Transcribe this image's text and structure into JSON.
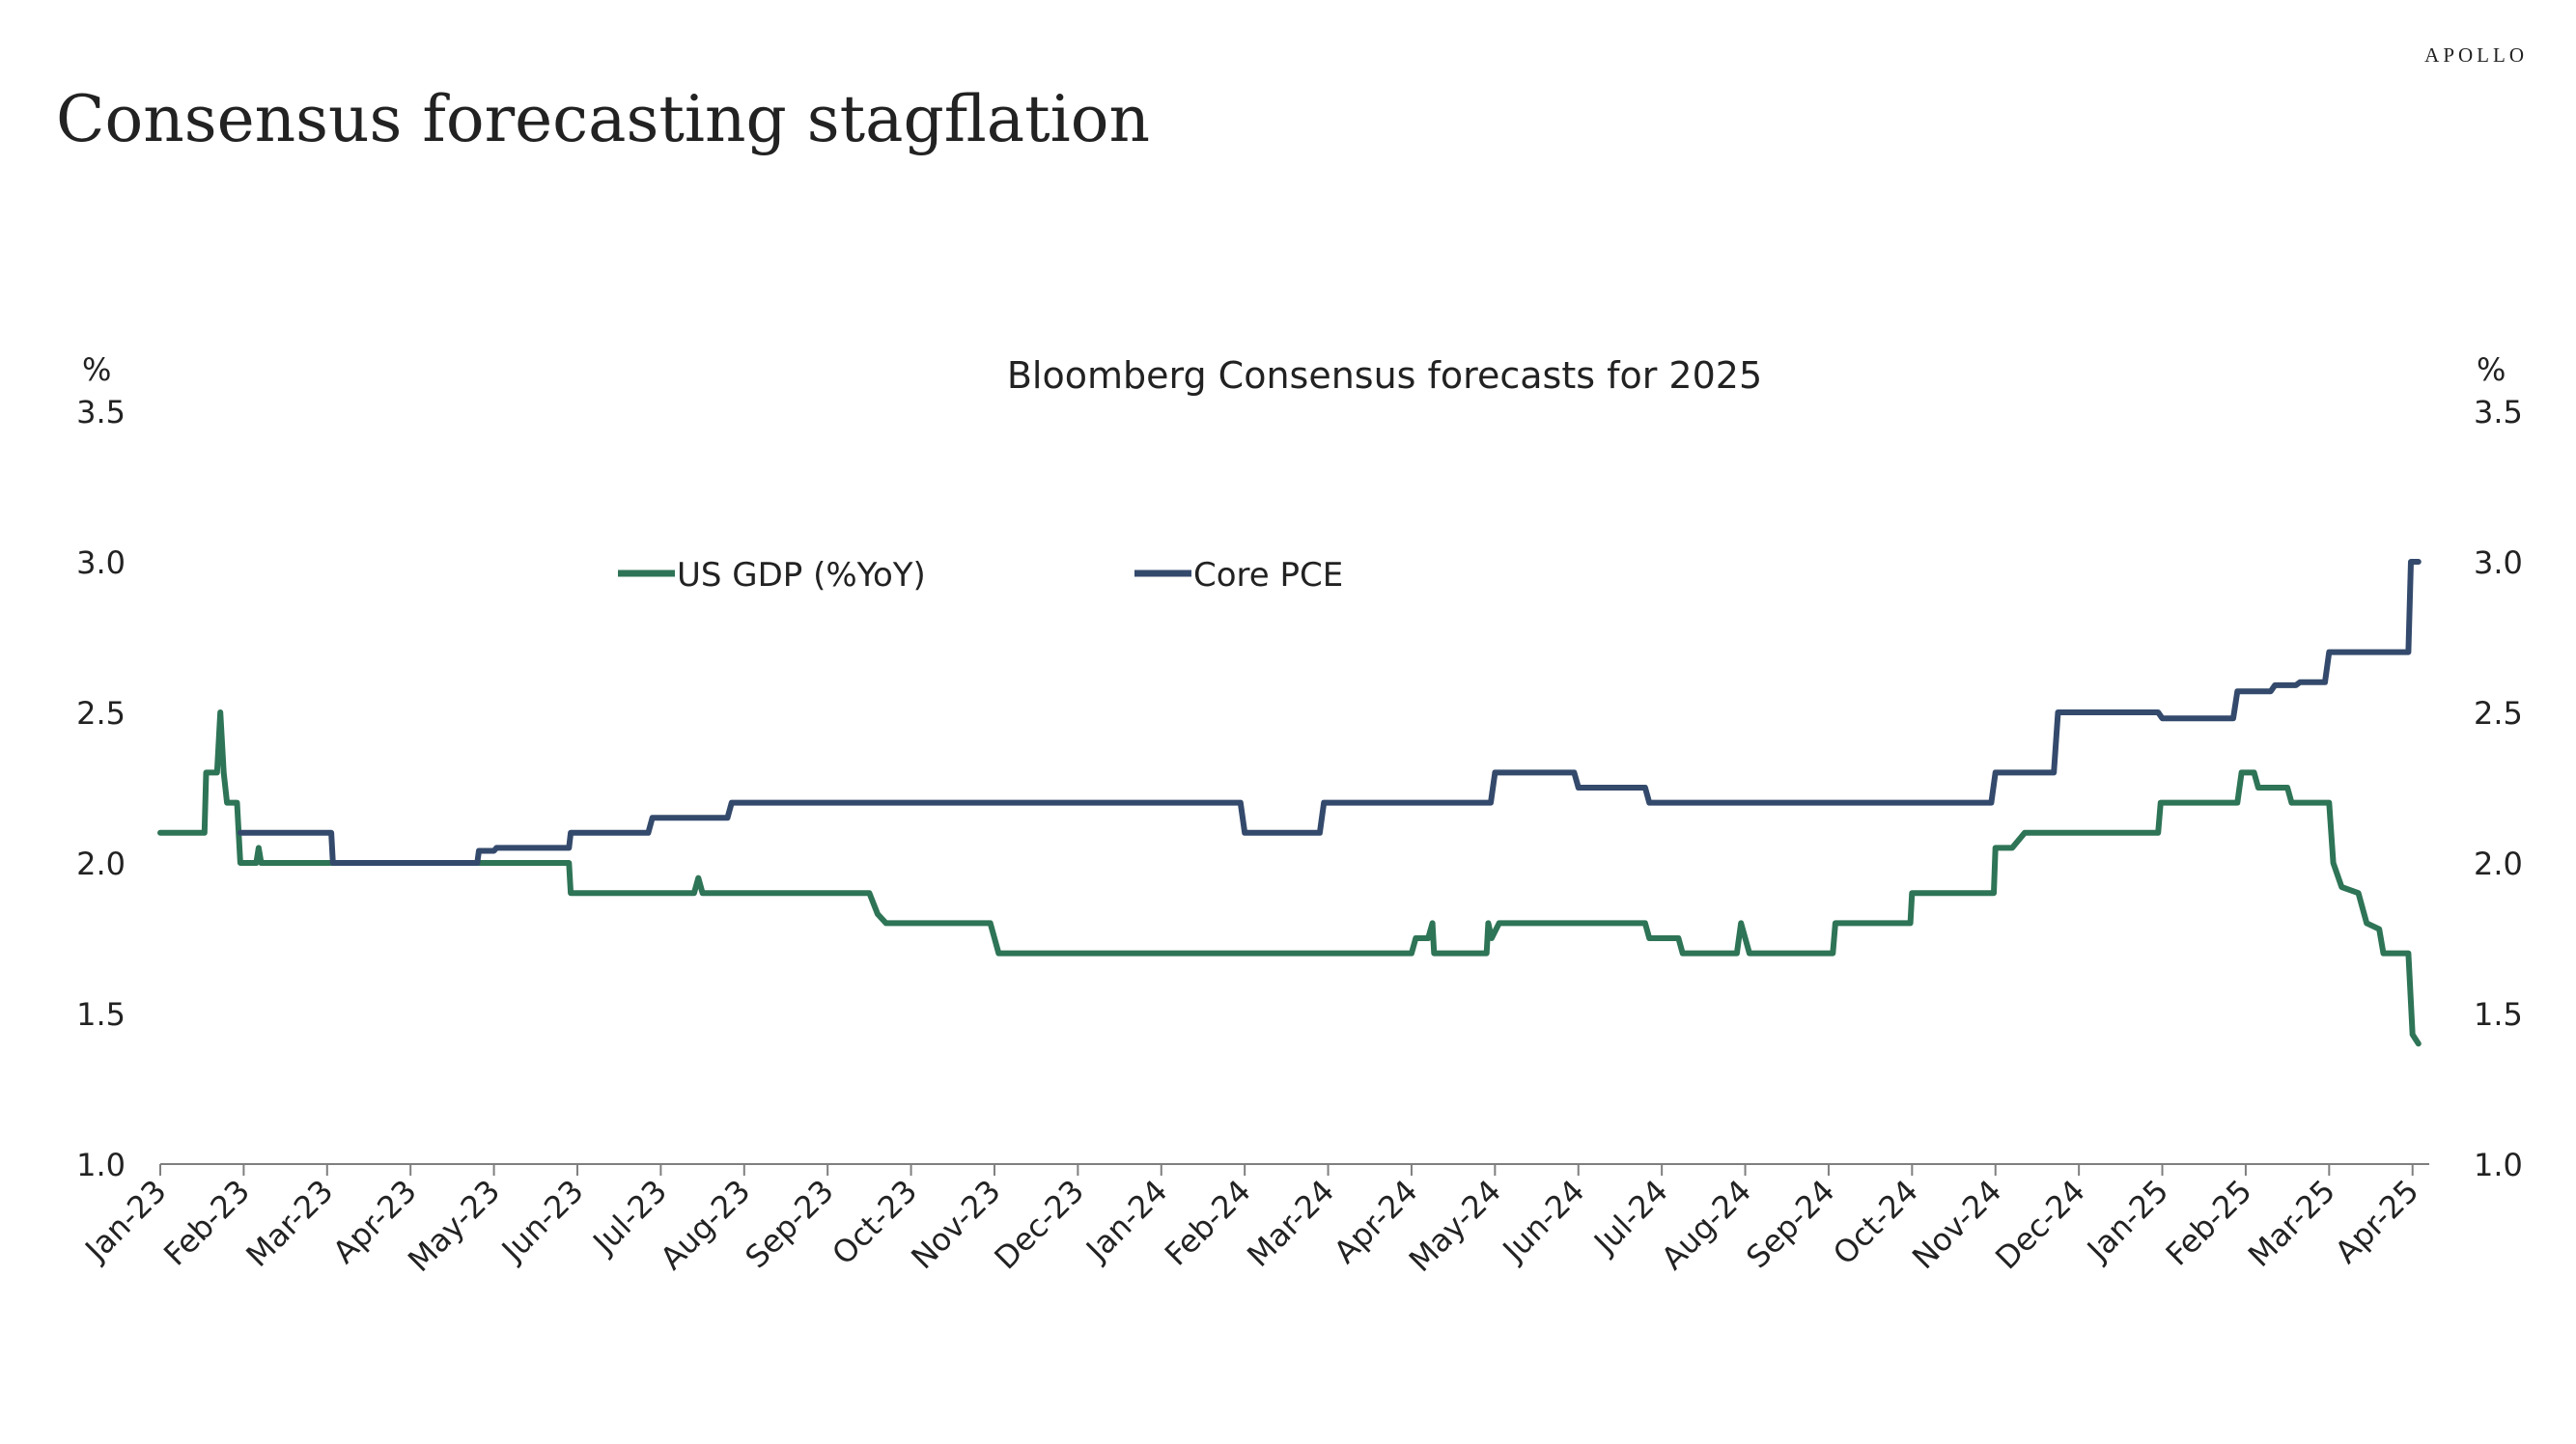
{
  "brand": "APOLLO",
  "headline": "Consensus forecasting stagflation",
  "chart_data": {
    "type": "line",
    "title": "Bloomberg Consensus forecasts for 2025",
    "y_unit_left": "%",
    "y_unit_right": "%",
    "ylim": [
      1.0,
      3.5
    ],
    "y_ticks": [
      "1.0",
      "1.5",
      "2.0",
      "2.5",
      "3.0",
      "3.5"
    ],
    "x_range": [
      0,
      27.2
    ],
    "x_ticks": [
      "Jan-23",
      "Feb-23",
      "Mar-23",
      "Apr-23",
      "May-23",
      "Jun-23",
      "Jul-23",
      "Aug-23",
      "Sep-23",
      "Oct-23",
      "Nov-23",
      "Dec-23",
      "Jan-24",
      "Feb-24",
      "Mar-24",
      "Apr-24",
      "May-24",
      "Jun-24",
      "Jul-24",
      "Aug-24",
      "Sep-24",
      "Oct-24",
      "Nov-24",
      "Dec-24",
      "Jan-25",
      "Feb-25",
      "Mar-25",
      "Apr-25"
    ],
    "x_note": "x values are in months measured from Jan-23",
    "grid": false,
    "legend_position": "top-left",
    "colors": {
      "US GDP (%YoY)": "#2e7456",
      "Core PCE": "#344a6c"
    },
    "series": [
      {
        "name": "US GDP (%YoY)",
        "points": [
          [
            0.0,
            2.1
          ],
          [
            0.53,
            2.1
          ],
          [
            0.55,
            2.3
          ],
          [
            0.68,
            2.3
          ],
          [
            0.72,
            2.5
          ],
          [
            0.76,
            2.3
          ],
          [
            0.8,
            2.2
          ],
          [
            0.92,
            2.2
          ],
          [
            0.96,
            2.0
          ],
          [
            1.15,
            2.0
          ],
          [
            1.18,
            2.05
          ],
          [
            1.21,
            2.0
          ],
          [
            1.5,
            2.0
          ],
          [
            2.0,
            2.0
          ],
          [
            3.0,
            2.0
          ],
          [
            4.0,
            2.0
          ],
          [
            4.9,
            2.0
          ],
          [
            4.92,
            1.9
          ],
          [
            6.4,
            1.9
          ],
          [
            6.45,
            1.95
          ],
          [
            6.5,
            1.9
          ],
          [
            8.5,
            1.9
          ],
          [
            8.6,
            1.83
          ],
          [
            8.7,
            1.8
          ],
          [
            9.95,
            1.8
          ],
          [
            10.05,
            1.7
          ],
          [
            15.0,
            1.7
          ],
          [
            15.05,
            1.75
          ],
          [
            15.2,
            1.75
          ],
          [
            15.25,
            1.8
          ],
          [
            15.27,
            1.7
          ],
          [
            15.9,
            1.7
          ],
          [
            15.92,
            1.8
          ],
          [
            15.96,
            1.75
          ],
          [
            16.05,
            1.8
          ],
          [
            17.8,
            1.8
          ],
          [
            17.85,
            1.75
          ],
          [
            18.2,
            1.75
          ],
          [
            18.25,
            1.7
          ],
          [
            18.9,
            1.7
          ],
          [
            18.95,
            1.8
          ],
          [
            19.05,
            1.7
          ],
          [
            20.05,
            1.7
          ],
          [
            20.08,
            1.8
          ],
          [
            20.98,
            1.8
          ],
          [
            21.0,
            1.9
          ],
          [
            21.98,
            1.9
          ],
          [
            22.0,
            2.05
          ],
          [
            22.2,
            2.05
          ],
          [
            22.35,
            2.1
          ],
          [
            23.95,
            2.1
          ],
          [
            23.98,
            2.2
          ],
          [
            24.9,
            2.2
          ],
          [
            24.95,
            2.3
          ],
          [
            25.1,
            2.3
          ],
          [
            25.15,
            2.25
          ],
          [
            25.5,
            2.25
          ],
          [
            25.55,
            2.2
          ],
          [
            26.0,
            2.2
          ],
          [
            26.05,
            2.0
          ],
          [
            26.15,
            1.92
          ],
          [
            26.35,
            1.9
          ],
          [
            26.45,
            1.8
          ],
          [
            26.6,
            1.78
          ],
          [
            26.65,
            1.7
          ],
          [
            26.95,
            1.7
          ],
          [
            27.0,
            1.43
          ],
          [
            27.07,
            1.4
          ]
        ]
      },
      {
        "name": "Core PCE",
        "points": [
          [
            0.96,
            2.1
          ],
          [
            2.05,
            2.1
          ],
          [
            2.07,
            2.0
          ],
          [
            3.8,
            2.0
          ],
          [
            3.82,
            2.04
          ],
          [
            4.0,
            2.04
          ],
          [
            4.03,
            2.05
          ],
          [
            4.9,
            2.05
          ],
          [
            4.92,
            2.1
          ],
          [
            5.85,
            2.1
          ],
          [
            5.9,
            2.15
          ],
          [
            6.8,
            2.15
          ],
          [
            6.85,
            2.2
          ],
          [
            12.95,
            2.2
          ],
          [
            13.0,
            2.1
          ],
          [
            13.9,
            2.1
          ],
          [
            13.95,
            2.2
          ],
          [
            15.95,
            2.2
          ],
          [
            16.0,
            2.3
          ],
          [
            16.95,
            2.3
          ],
          [
            17.0,
            2.25
          ],
          [
            17.8,
            2.25
          ],
          [
            17.85,
            2.2
          ],
          [
            21.95,
            2.2
          ],
          [
            22.0,
            2.3
          ],
          [
            22.7,
            2.3
          ],
          [
            22.75,
            2.5
          ],
          [
            23.95,
            2.5
          ],
          [
            24.0,
            2.48
          ],
          [
            24.85,
            2.48
          ],
          [
            24.9,
            2.57
          ],
          [
            25.3,
            2.57
          ],
          [
            25.35,
            2.59
          ],
          [
            25.6,
            2.59
          ],
          [
            25.65,
            2.6
          ],
          [
            25.95,
            2.6
          ],
          [
            26.0,
            2.7
          ],
          [
            26.95,
            2.7
          ],
          [
            26.98,
            3.0
          ],
          [
            27.07,
            3.0
          ]
        ]
      }
    ]
  }
}
